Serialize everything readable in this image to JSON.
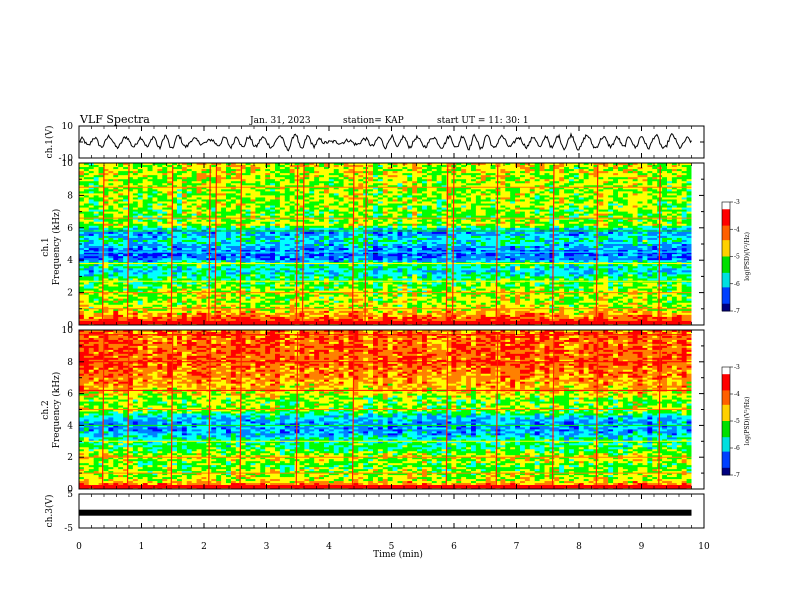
{
  "header": {
    "title": "VLF Spectra",
    "date": "Jan. 31, 2023",
    "station": "station= KAP",
    "start": "start  UT  =   11: 30: 1"
  },
  "colors": {
    "axes": "#000000",
    "trace": "#000000",
    "colormap": [
      "#000080",
      "#0000ff",
      "#0080ff",
      "#00ffff",
      "#00ff00",
      "#ffff00",
      "#ff8000",
      "#ff0000",
      "#ffffff"
    ]
  },
  "chart_data": [
    {
      "type": "line",
      "panel": "ch1-waveform",
      "ylabel": "ch.1(V)",
      "ylim": [
        -10,
        10
      ],
      "yticks": [
        "10",
        "-10"
      ],
      "x": [
        0,
        0.5,
        1,
        1.5,
        2,
        2.5,
        3,
        3.5,
        4,
        4.5,
        5,
        5.5,
        6,
        6.5,
        7,
        7.5,
        8,
        8.5,
        9,
        9.5,
        9.8
      ],
      "y": [
        2,
        4,
        3,
        5,
        1,
        4,
        3,
        6,
        0,
        2,
        4,
        3,
        4,
        5,
        3,
        4,
        5,
        3,
        4,
        5,
        2
      ]
    },
    {
      "type": "heatmap",
      "panel": "ch1-spectrogram",
      "ylabel": "ch.1\nFrequency (kHz)",
      "ylim": [
        0,
        10
      ],
      "yticks": [
        "0",
        "2",
        "4",
        "6",
        "8",
        "10"
      ],
      "colorbar": {
        "label": "log(PSD)(V²/Hz)",
        "range": [
          -7,
          -3
        ],
        "ticks": [
          "-3",
          "-4",
          "-5",
          "-6",
          "-7"
        ]
      },
      "bands_khz": [
        0.1,
        0.5,
        1.0,
        1.5,
        2.0,
        2.3,
        2.7,
        3.3,
        3.8,
        4.0,
        4.5,
        5.2,
        5.8,
        6.2,
        6.6,
        7.5,
        8.5,
        9.5
      ],
      "band_level": [
        -3,
        -3.5,
        -4.2,
        -4.4,
        -4.3,
        -4.6,
        -4.7,
        -5.4,
        -4.8,
        -5.8,
        -6.0,
        -5.2,
        -5.8,
        -4.3,
        -4.6,
        -4.4,
        -4.4,
        -4.2
      ],
      "impulses_min": [
        0.4,
        0.8,
        1.5,
        2.1,
        2.2,
        2.6,
        3.5,
        3.6,
        4.4,
        4.6,
        5.9,
        6.0,
        6.7,
        7.6,
        8.3,
        9.3
      ]
    },
    {
      "type": "heatmap",
      "panel": "ch2-spectrogram",
      "ylabel": "ch.2\nFrequency (kHz)",
      "ylim": [
        0,
        10
      ],
      "yticks": [
        "0",
        "2",
        "4",
        "6",
        "8",
        "10"
      ],
      "colorbar": {
        "label": "log(PSD)(V²/Hz)",
        "range": [
          -7,
          -3
        ],
        "ticks": [
          "-3",
          "-4",
          "-5",
          "-6",
          "-7"
        ]
      },
      "bands_khz": [
        0.1,
        0.5,
        1.0,
        1.5,
        2.0,
        2.5,
        3.0,
        3.5,
        4.0,
        4.5,
        5.0,
        5.5,
        6.2,
        7.0,
        8.0,
        9.0,
        9.7
      ],
      "band_level": [
        -3,
        -4.2,
        -4.4,
        -4.6,
        -4.2,
        -4.8,
        -5.0,
        -5.6,
        -5.8,
        -5.4,
        -4.4,
        -4.6,
        -4.0,
        -3.6,
        -3.4,
        -3.4,
        -3.5
      ],
      "impulses_min": [
        0.4,
        0.8,
        1.5,
        2.1,
        2.6,
        3.5,
        4.4,
        5.9,
        6.7,
        7.6,
        8.3,
        9.3
      ]
    },
    {
      "type": "line",
      "panel": "ch3-waveform",
      "ylabel": "ch.3(V)",
      "ylim": [
        -5,
        5
      ],
      "yticks": [
        "5",
        "-5"
      ],
      "x": [
        0,
        9.8
      ],
      "y": [
        -0.5,
        -0.5
      ]
    }
  ],
  "xaxis": {
    "label": "Time (min)",
    "ticks": [
      "0",
      "1",
      "2",
      "3",
      "4",
      "5",
      "6",
      "7",
      "8",
      "9",
      "10"
    ],
    "range": [
      0,
      10
    ]
  }
}
